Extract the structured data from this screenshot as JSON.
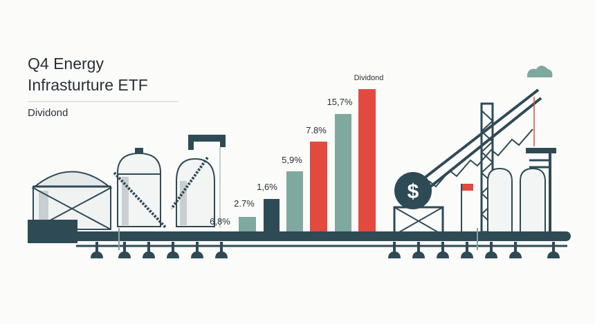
{
  "header": {
    "title_line_1": "Q4 Energy",
    "title_line_2": "Infrasturture ETF",
    "subtitle": "Dividond"
  },
  "bar_labels": [
    "6,8%",
    "2.7%",
    "1,6%",
    "5,9%",
    "7.8%",
    "15,7%",
    "Dividond"
  ],
  "coin_symbol": "$"
}
